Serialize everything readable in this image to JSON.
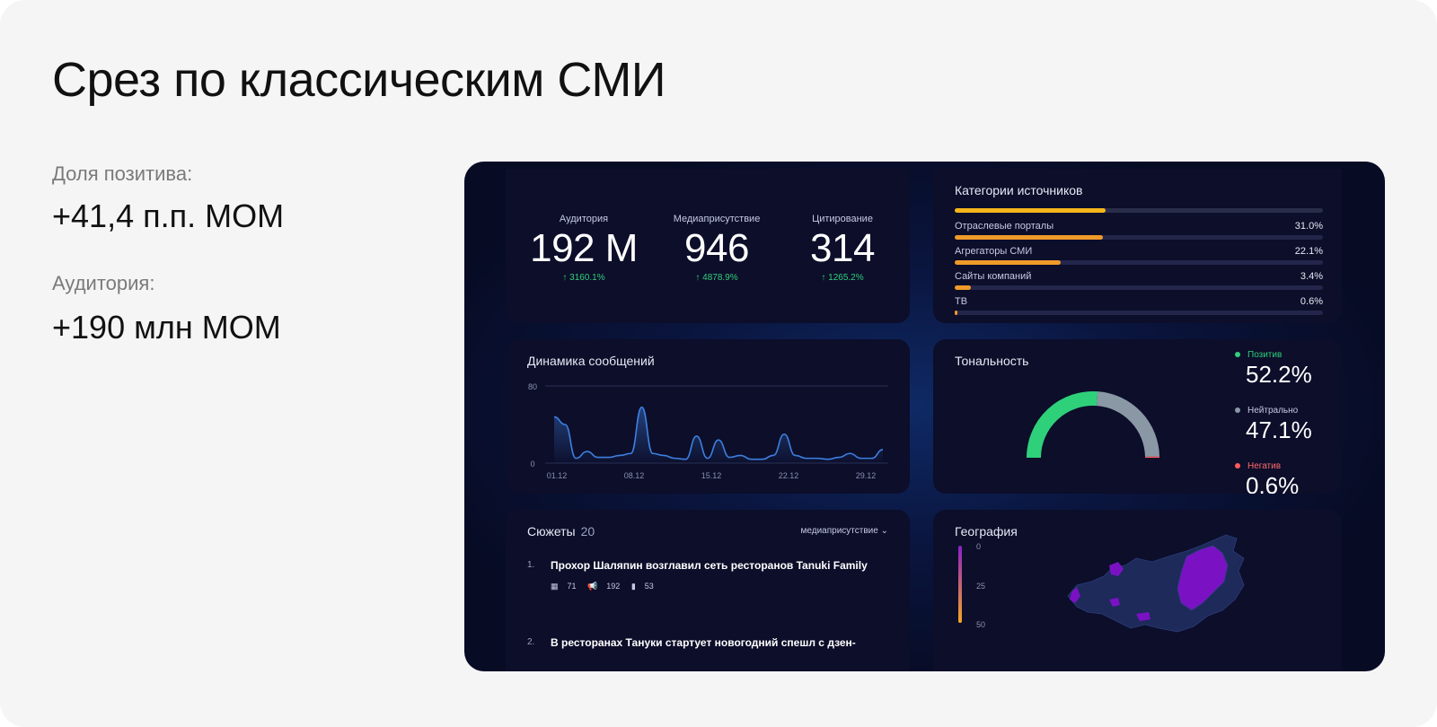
{
  "slide": {
    "title": "Срез по классическим СМИ",
    "stats": [
      {
        "label": "Доля позитива:",
        "value": "+41,4 п.п. МОМ"
      },
      {
        "label": "Аудитория:",
        "value": "+190 млн МОМ"
      }
    ]
  },
  "dashboard": {
    "metrics": [
      {
        "label": "Аудитория",
        "value": "192 M",
        "change": "↑ 3160.1%"
      },
      {
        "label": "Медиаприсутствие",
        "value": "946",
        "change": "↑ 4878.9%"
      },
      {
        "label": "Цитирование",
        "value": "314",
        "change": "↑ 1265.2%"
      }
    ],
    "categories": {
      "title": "Категории источников",
      "top_bar_fraction": 0.41,
      "items": [
        {
          "name": "Отраслевые порталы",
          "percent": "31.0%",
          "fraction": 0.31
        },
        {
          "name": "Агрегаторы СМИ",
          "percent": "22.1%",
          "fraction": 0.221
        },
        {
          "name": "Сайты компаний",
          "percent": "3.4%",
          "fraction": 0.034
        },
        {
          "name": "ТВ",
          "percent": "0.6%",
          "fraction": 0.006
        }
      ],
      "colors": {
        "top_bar": "#f5b51b",
        "bars": "#f09a2a"
      }
    },
    "dynamics": {
      "title": "Динамика сообщений",
      "chart_data": {
        "type": "area",
        "y_ticks": [
          "80",
          "0"
        ],
        "ylim": [
          0,
          80
        ],
        "x_ticks": [
          "01.12",
          "08.12",
          "15.12",
          "22.12",
          "29.12"
        ],
        "x": [
          1,
          2,
          3,
          4,
          5,
          6,
          7,
          8,
          9,
          10,
          11,
          12,
          13,
          14,
          15,
          16,
          17,
          18,
          19,
          20,
          21,
          22,
          23,
          24,
          25,
          26,
          27,
          28,
          29,
          30,
          31
        ],
        "values": [
          48,
          40,
          5,
          12,
          6,
          6,
          8,
          10,
          58,
          10,
          8,
          5,
          4,
          28,
          5,
          24,
          6,
          8,
          4,
          4,
          8,
          30,
          8,
          5,
          5,
          4,
          6,
          10,
          5,
          5,
          14
        ],
        "color": "#3d7fe0"
      }
    },
    "tonality": {
      "title": "Тональность",
      "chart_data": {
        "type": "pie",
        "shape": "half-donut",
        "slices": [
          {
            "name": "Позитив",
            "value": 52.2,
            "label": "52.2%",
            "color": "#2fd07a"
          },
          {
            "name": "Нейтрально",
            "value": 47.1,
            "label": "47.1%",
            "color": "#8a98a6"
          },
          {
            "name": "Негатив",
            "value": 0.6,
            "label": "0.6%",
            "color": "#ff5a5a"
          }
        ]
      }
    },
    "plots": {
      "title": "Сюжеты",
      "count": "20",
      "filter_label": "медиаприсутствие",
      "filter_icon": "chevron-down-icon",
      "items": [
        {
          "num": "1.",
          "text": "Прохор Шаляпин возглавил сеть ресторанов Tanuki Family",
          "meta": {
            "publications": "71",
            "reposts": "192",
            "citations": "53"
          }
        },
        {
          "num": "2.",
          "text": "В ресторанах Тануки стартует новогодний спешл с дзен-",
          "meta": null
        }
      ]
    },
    "geography": {
      "title": "География",
      "legend_ticks": [
        "0",
        "25",
        "50"
      ],
      "colors": {
        "scale_low": "#8a20c8",
        "scale_high": "#f5a623",
        "region_base": "#1d2a5a",
        "region_high": "#7a12c4"
      }
    }
  }
}
